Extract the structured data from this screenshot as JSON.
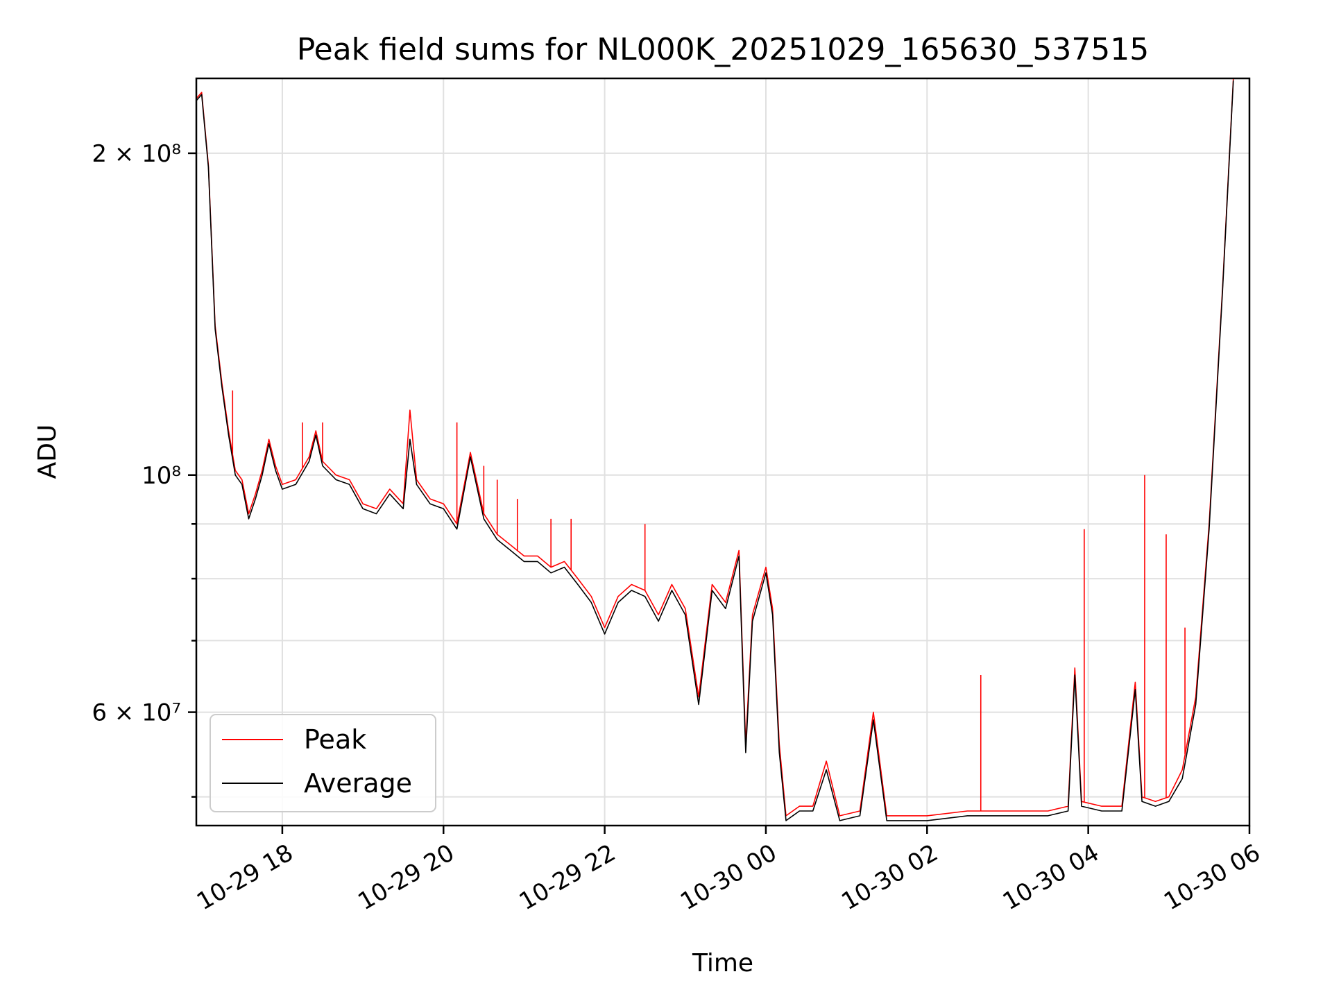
{
  "chart_data": {
    "type": "line",
    "title": "Peak field sums for NL000K_20251029_165630_537515",
    "xlabel": "Time",
    "ylabel": "ADU",
    "yscale": "log",
    "grid": true,
    "legend_position": "lower-left",
    "xlim": [
      "2025-10-29 16:56",
      "2025-10-30 06:00"
    ],
    "ylim": [
      47000000,
      235000000
    ],
    "x_ticks": [
      {
        "value": "2025-10-29 18:00",
        "label": "10-29 18"
      },
      {
        "value": "2025-10-29 20:00",
        "label": "10-29 20"
      },
      {
        "value": "2025-10-29 22:00",
        "label": "10-29 22"
      },
      {
        "value": "2025-10-30 00:00",
        "label": "10-30 00"
      },
      {
        "value": "2025-10-30 02:00",
        "label": "10-30 02"
      },
      {
        "value": "2025-10-30 04:00",
        "label": "10-30 04"
      },
      {
        "value": "2025-10-30 06:00",
        "label": "10-30 06"
      }
    ],
    "y_ticks": [
      {
        "value": 60000000,
        "label": "6 × 10⁷"
      },
      {
        "value": 100000000,
        "label": "10⁸"
      },
      {
        "value": 200000000,
        "label": "2 × 10⁸"
      }
    ],
    "y_minor_ticks": [
      50000000,
      70000000,
      80000000,
      90000000
    ],
    "series": [
      {
        "name": "Peak",
        "color": "#ff0000",
        "points": [
          [
            "2025-10-29 16:56",
            225000000
          ],
          [
            "2025-10-29 17:00",
            228000000
          ],
          [
            "2025-10-29 17:05",
            195000000
          ],
          [
            "2025-10-29 17:10",
            138000000
          ],
          [
            "2025-10-29 17:15",
            122000000
          ],
          [
            "2025-10-29 17:20",
            110000000
          ],
          [
            "2025-10-29 17:25",
            101000000
          ],
          [
            "2025-10-29 17:30",
            99000000
          ],
          [
            "2025-10-29 17:35",
            92000000
          ],
          [
            "2025-10-29 17:40",
            96000000
          ],
          [
            "2025-10-29 17:45",
            101000000
          ],
          [
            "2025-10-29 17:50",
            108000000
          ],
          [
            "2025-10-29 17:55",
            102000000
          ],
          [
            "2025-10-29 18:00",
            98000000
          ],
          [
            "2025-10-29 18:10",
            99000000
          ],
          [
            "2025-10-29 18:20",
            104000000
          ],
          [
            "2025-10-29 18:25",
            110000000
          ],
          [
            "2025-10-29 18:30",
            103000000
          ],
          [
            "2025-10-29 18:40",
            100000000
          ],
          [
            "2025-10-29 18:50",
            99000000
          ],
          [
            "2025-10-29 19:00",
            94000000
          ],
          [
            "2025-10-29 19:10",
            93000000
          ],
          [
            "2025-10-29 19:20",
            97000000
          ],
          [
            "2025-10-29 19:30",
            94000000
          ],
          [
            "2025-10-29 19:35",
            115000000
          ],
          [
            "2025-10-29 19:40",
            99000000
          ],
          [
            "2025-10-29 19:50",
            95000000
          ],
          [
            "2025-10-29 20:00",
            94000000
          ],
          [
            "2025-10-29 20:10",
            90000000
          ],
          [
            "2025-10-29 20:20",
            105000000
          ],
          [
            "2025-10-29 20:30",
            92000000
          ],
          [
            "2025-10-29 20:40",
            88000000
          ],
          [
            "2025-10-29 20:50",
            86000000
          ],
          [
            "2025-10-29 21:00",
            84000000
          ],
          [
            "2025-10-29 21:10",
            84000000
          ],
          [
            "2025-10-29 21:20",
            82000000
          ],
          [
            "2025-10-29 21:30",
            83000000
          ],
          [
            "2025-10-29 21:40",
            80000000
          ],
          [
            "2025-10-29 21:50",
            77000000
          ],
          [
            "2025-10-29 22:00",
            72000000
          ],
          [
            "2025-10-29 22:10",
            77000000
          ],
          [
            "2025-10-29 22:20",
            79000000
          ],
          [
            "2025-10-29 22:30",
            78000000
          ],
          [
            "2025-10-29 22:40",
            74000000
          ],
          [
            "2025-10-29 22:50",
            79000000
          ],
          [
            "2025-10-29 23:00",
            75000000
          ],
          [
            "2025-10-29 23:10",
            62000000
          ],
          [
            "2025-10-29 23:20",
            79000000
          ],
          [
            "2025-10-29 23:30",
            76000000
          ],
          [
            "2025-10-29 23:40",
            85000000
          ],
          [
            "2025-10-29 23:45",
            56000000
          ],
          [
            "2025-10-29 23:50",
            74000000
          ],
          [
            "2025-10-30 00:00",
            82000000
          ],
          [
            "2025-10-30 00:05",
            75000000
          ],
          [
            "2025-10-30 00:10",
            56000000
          ],
          [
            "2025-10-30 00:15",
            48000000
          ],
          [
            "2025-10-30 00:25",
            49000000
          ],
          [
            "2025-10-30 00:35",
            49000000
          ],
          [
            "2025-10-30 00:45",
            54000000
          ],
          [
            "2025-10-30 00:55",
            48000000
          ],
          [
            "2025-10-30 01:10",
            48500000
          ],
          [
            "2025-10-30 01:20",
            60000000
          ],
          [
            "2025-10-30 01:30",
            48000000
          ],
          [
            "2025-10-30 02:00",
            48000000
          ],
          [
            "2025-10-30 02:30",
            48500000
          ],
          [
            "2025-10-30 03:00",
            48500000
          ],
          [
            "2025-10-30 03:30",
            48500000
          ],
          [
            "2025-10-30 03:45",
            49000000
          ],
          [
            "2025-10-30 03:50",
            66000000
          ],
          [
            "2025-10-30 03:55",
            49500000
          ],
          [
            "2025-10-30 04:10",
            49000000
          ],
          [
            "2025-10-30 04:25",
            49000000
          ],
          [
            "2025-10-30 04:35",
            64000000
          ],
          [
            "2025-10-30 04:40",
            50000000
          ],
          [
            "2025-10-30 04:50",
            49500000
          ],
          [
            "2025-10-30 05:00",
            50000000
          ],
          [
            "2025-10-30 05:10",
            53000000
          ],
          [
            "2025-10-30 05:20",
            62000000
          ],
          [
            "2025-10-30 05:30",
            90000000
          ],
          [
            "2025-10-30 05:40",
            150000000
          ],
          [
            "2025-10-30 05:48",
            235000000
          ]
        ],
        "spikes": [
          [
            "2025-10-29 17:23",
            120000000
          ],
          [
            "2025-10-29 18:15",
            112000000
          ],
          [
            "2025-10-29 18:30",
            112000000
          ],
          [
            "2025-10-29 19:35",
            115000000
          ],
          [
            "2025-10-29 20:10",
            112000000
          ],
          [
            "2025-10-29 20:30",
            102000000
          ],
          [
            "2025-10-29 20:40",
            99000000
          ],
          [
            "2025-10-29 20:55",
            95000000
          ],
          [
            "2025-10-29 21:20",
            91000000
          ],
          [
            "2025-10-29 21:35",
            91000000
          ],
          [
            "2025-10-29 22:30",
            90000000
          ],
          [
            "2025-10-30 02:40",
            65000000
          ],
          [
            "2025-10-30 03:57",
            89000000
          ],
          [
            "2025-10-30 04:42",
            100000000
          ],
          [
            "2025-10-30 04:58",
            88000000
          ],
          [
            "2025-10-30 05:12",
            72000000
          ]
        ]
      },
      {
        "name": "Average",
        "color": "#000000",
        "points": [
          [
            "2025-10-29 16:56",
            224000000
          ],
          [
            "2025-10-29 17:00",
            227000000
          ],
          [
            "2025-10-29 17:05",
            194000000
          ],
          [
            "2025-10-29 17:10",
            137000000
          ],
          [
            "2025-10-29 17:15",
            121000000
          ],
          [
            "2025-10-29 17:20",
            109000000
          ],
          [
            "2025-10-29 17:25",
            100000000
          ],
          [
            "2025-10-29 17:30",
            98000000
          ],
          [
            "2025-10-29 17:35",
            91000000
          ],
          [
            "2025-10-29 17:40",
            95000000
          ],
          [
            "2025-10-29 17:45",
            100000000
          ],
          [
            "2025-10-29 17:50",
            107000000
          ],
          [
            "2025-10-29 17:55",
            101000000
          ],
          [
            "2025-10-29 18:00",
            97000000
          ],
          [
            "2025-10-29 18:10",
            98000000
          ],
          [
            "2025-10-29 18:20",
            103000000
          ],
          [
            "2025-10-29 18:25",
            109000000
          ],
          [
            "2025-10-29 18:30",
            102000000
          ],
          [
            "2025-10-29 18:40",
            99000000
          ],
          [
            "2025-10-29 18:50",
            98000000
          ],
          [
            "2025-10-29 19:00",
            93000000
          ],
          [
            "2025-10-29 19:10",
            92000000
          ],
          [
            "2025-10-29 19:20",
            96000000
          ],
          [
            "2025-10-29 19:30",
            93000000
          ],
          [
            "2025-10-29 19:35",
            108000000
          ],
          [
            "2025-10-29 19:40",
            98000000
          ],
          [
            "2025-10-29 19:50",
            94000000
          ],
          [
            "2025-10-29 20:00",
            93000000
          ],
          [
            "2025-10-29 20:10",
            89000000
          ],
          [
            "2025-10-29 20:20",
            104000000
          ],
          [
            "2025-10-29 20:30",
            91000000
          ],
          [
            "2025-10-29 20:40",
            87000000
          ],
          [
            "2025-10-29 20:50",
            85000000
          ],
          [
            "2025-10-29 21:00",
            83000000
          ],
          [
            "2025-10-29 21:10",
            83000000
          ],
          [
            "2025-10-29 21:20",
            81000000
          ],
          [
            "2025-10-29 21:30",
            82000000
          ],
          [
            "2025-10-29 21:40",
            79000000
          ],
          [
            "2025-10-29 21:50",
            76000000
          ],
          [
            "2025-10-29 22:00",
            71000000
          ],
          [
            "2025-10-29 22:10",
            76000000
          ],
          [
            "2025-10-29 22:20",
            78000000
          ],
          [
            "2025-10-29 22:30",
            77000000
          ],
          [
            "2025-10-29 22:40",
            73000000
          ],
          [
            "2025-10-29 22:50",
            78000000
          ],
          [
            "2025-10-29 23:00",
            74000000
          ],
          [
            "2025-10-29 23:10",
            61000000
          ],
          [
            "2025-10-29 23:20",
            78000000
          ],
          [
            "2025-10-29 23:30",
            75000000
          ],
          [
            "2025-10-29 23:40",
            84000000
          ],
          [
            "2025-10-29 23:45",
            55000000
          ],
          [
            "2025-10-29 23:50",
            73000000
          ],
          [
            "2025-10-30 00:00",
            81000000
          ],
          [
            "2025-10-30 00:05",
            74000000
          ],
          [
            "2025-10-30 00:10",
            55000000
          ],
          [
            "2025-10-30 00:15",
            47500000
          ],
          [
            "2025-10-30 00:25",
            48500000
          ],
          [
            "2025-10-30 00:35",
            48500000
          ],
          [
            "2025-10-30 00:45",
            53000000
          ],
          [
            "2025-10-30 00:55",
            47500000
          ],
          [
            "2025-10-30 01:10",
            48000000
          ],
          [
            "2025-10-30 01:20",
            59000000
          ],
          [
            "2025-10-30 01:30",
            47500000
          ],
          [
            "2025-10-30 02:00",
            47500000
          ],
          [
            "2025-10-30 02:30",
            48000000
          ],
          [
            "2025-10-30 03:00",
            48000000
          ],
          [
            "2025-10-30 03:30",
            48000000
          ],
          [
            "2025-10-30 03:45",
            48500000
          ],
          [
            "2025-10-30 03:50",
            65000000
          ],
          [
            "2025-10-30 03:55",
            49000000
          ],
          [
            "2025-10-30 04:10",
            48500000
          ],
          [
            "2025-10-30 04:25",
            48500000
          ],
          [
            "2025-10-30 04:35",
            63000000
          ],
          [
            "2025-10-30 04:40",
            49500000
          ],
          [
            "2025-10-30 04:50",
            49000000
          ],
          [
            "2025-10-30 05:00",
            49500000
          ],
          [
            "2025-10-30 05:10",
            52000000
          ],
          [
            "2025-10-30 05:20",
            61000000
          ],
          [
            "2025-10-30 05:30",
            89000000
          ],
          [
            "2025-10-30 05:40",
            149000000
          ],
          [
            "2025-10-30 05:48",
            234000000
          ]
        ]
      }
    ]
  }
}
